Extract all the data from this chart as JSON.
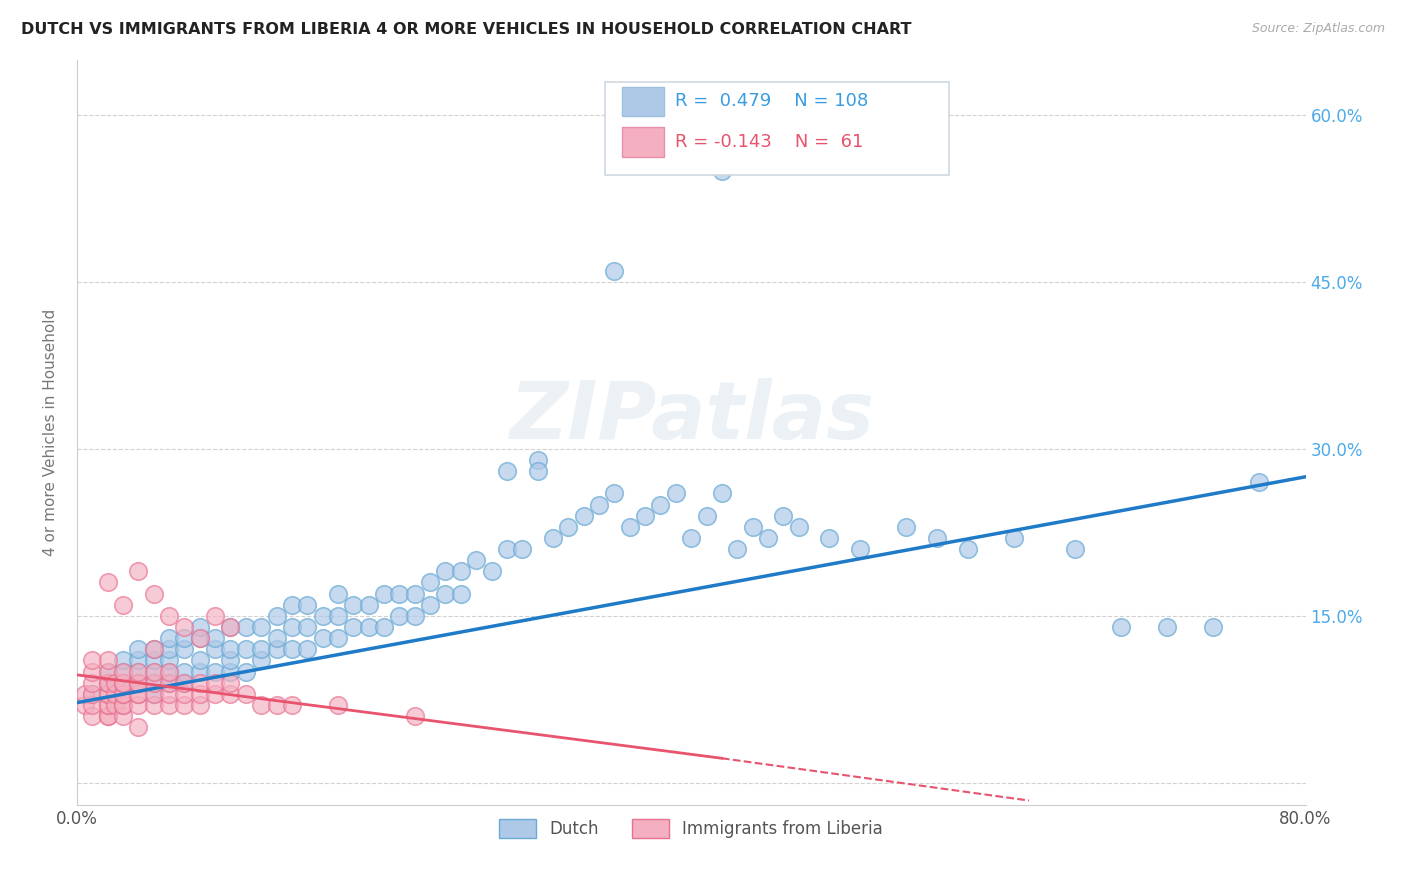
{
  "title": "DUTCH VS IMMIGRANTS FROM LIBERIA 4 OR MORE VEHICLES IN HOUSEHOLD CORRELATION CHART",
  "source": "Source: ZipAtlas.com",
  "ylabel": "4 or more Vehicles in Household",
  "xlim": [
    0.0,
    0.8
  ],
  "ylim": [
    -0.02,
    0.65
  ],
  "yticks_right": [
    0.0,
    0.15,
    0.3,
    0.45,
    0.6
  ],
  "yticklabels_right": [
    "",
    "15.0%",
    "30.0%",
    "45.0%",
    "60.0%"
  ],
  "dutch_R": 0.479,
  "dutch_N": 108,
  "liberia_R": -0.143,
  "liberia_N": 61,
  "dutch_color": "#aec9e8",
  "dutch_edge_color": "#6aaad4",
  "liberia_color": "#f4afc0",
  "liberia_edge_color": "#e87090",
  "dutch_line_color": "#1f7bc8",
  "liberia_line_color": "#e8536e",
  "liberia_line_solid_end": 0.42,
  "liberia_line_dash_end": 0.62,
  "watermark": "ZIPatlas",
  "legend_dutch_label": "Dutch",
  "legend_liberia_label": "Immigrants from Liberia",
  "dutch_scatter_x": [
    0.01,
    0.02,
    0.02,
    0.03,
    0.03,
    0.03,
    0.04,
    0.04,
    0.04,
    0.04,
    0.05,
    0.05,
    0.05,
    0.05,
    0.05,
    0.06,
    0.06,
    0.06,
    0.06,
    0.06,
    0.07,
    0.07,
    0.07,
    0.07,
    0.08,
    0.08,
    0.08,
    0.08,
    0.09,
    0.09,
    0.09,
    0.1,
    0.1,
    0.1,
    0.1,
    0.11,
    0.11,
    0.11,
    0.12,
    0.12,
    0.12,
    0.13,
    0.13,
    0.13,
    0.14,
    0.14,
    0.14,
    0.15,
    0.15,
    0.15,
    0.16,
    0.16,
    0.17,
    0.17,
    0.17,
    0.18,
    0.18,
    0.19,
    0.19,
    0.2,
    0.2,
    0.21,
    0.21,
    0.22,
    0.22,
    0.23,
    0.23,
    0.24,
    0.24,
    0.25,
    0.25,
    0.26,
    0.27,
    0.28,
    0.28,
    0.29,
    0.3,
    0.3,
    0.31,
    0.32,
    0.33,
    0.34,
    0.35,
    0.36,
    0.37,
    0.38,
    0.39,
    0.4,
    0.41,
    0.42,
    0.43,
    0.44,
    0.45,
    0.46,
    0.47,
    0.49,
    0.51,
    0.54,
    0.56,
    0.58,
    0.61,
    0.65,
    0.68,
    0.71,
    0.74,
    0.77,
    0.35,
    0.42
  ],
  "dutch_scatter_y": [
    0.08,
    0.09,
    0.1,
    0.09,
    0.1,
    0.11,
    0.09,
    0.1,
    0.11,
    0.12,
    0.08,
    0.09,
    0.1,
    0.11,
    0.12,
    0.09,
    0.1,
    0.11,
    0.12,
    0.13,
    0.09,
    0.1,
    0.12,
    0.13,
    0.1,
    0.11,
    0.13,
    0.14,
    0.1,
    0.12,
    0.13,
    0.1,
    0.11,
    0.12,
    0.14,
    0.1,
    0.12,
    0.14,
    0.11,
    0.12,
    0.14,
    0.12,
    0.13,
    0.15,
    0.12,
    0.14,
    0.16,
    0.12,
    0.14,
    0.16,
    0.13,
    0.15,
    0.13,
    0.15,
    0.17,
    0.14,
    0.16,
    0.14,
    0.16,
    0.14,
    0.17,
    0.15,
    0.17,
    0.15,
    0.17,
    0.16,
    0.18,
    0.17,
    0.19,
    0.17,
    0.19,
    0.2,
    0.19,
    0.21,
    0.28,
    0.21,
    0.29,
    0.28,
    0.22,
    0.23,
    0.24,
    0.25,
    0.26,
    0.23,
    0.24,
    0.25,
    0.26,
    0.22,
    0.24,
    0.26,
    0.21,
    0.23,
    0.22,
    0.24,
    0.23,
    0.22,
    0.21,
    0.23,
    0.22,
    0.21,
    0.22,
    0.21,
    0.14,
    0.14,
    0.14,
    0.27,
    0.46,
    0.55
  ],
  "liberia_scatter_x": [
    0.005,
    0.005,
    0.01,
    0.01,
    0.01,
    0.01,
    0.01,
    0.01,
    0.02,
    0.02,
    0.02,
    0.02,
    0.02,
    0.02,
    0.02,
    0.02,
    0.02,
    0.02,
    0.025,
    0.025,
    0.025,
    0.03,
    0.03,
    0.03,
    0.03,
    0.03,
    0.03,
    0.03,
    0.03,
    0.04,
    0.04,
    0.04,
    0.04,
    0.04,
    0.04,
    0.04,
    0.05,
    0.05,
    0.05,
    0.05,
    0.05,
    0.06,
    0.06,
    0.06,
    0.06,
    0.07,
    0.07,
    0.07,
    0.08,
    0.08,
    0.08,
    0.09,
    0.09,
    0.1,
    0.1,
    0.11,
    0.12,
    0.13,
    0.14,
    0.17,
    0.22
  ],
  "liberia_scatter_y": [
    0.07,
    0.08,
    0.06,
    0.07,
    0.08,
    0.09,
    0.1,
    0.11,
    0.06,
    0.06,
    0.07,
    0.07,
    0.08,
    0.08,
    0.09,
    0.09,
    0.1,
    0.11,
    0.07,
    0.08,
    0.09,
    0.06,
    0.07,
    0.07,
    0.08,
    0.08,
    0.09,
    0.09,
    0.1,
    0.05,
    0.07,
    0.08,
    0.08,
    0.09,
    0.09,
    0.1,
    0.07,
    0.08,
    0.09,
    0.1,
    0.12,
    0.07,
    0.08,
    0.09,
    0.1,
    0.07,
    0.08,
    0.09,
    0.07,
    0.08,
    0.09,
    0.08,
    0.09,
    0.08,
    0.09,
    0.08,
    0.07,
    0.07,
    0.07,
    0.07,
    0.06
  ],
  "liberia_extra_x": [
    0.02,
    0.03,
    0.04,
    0.05,
    0.06,
    0.07,
    0.08,
    0.09,
    0.1
  ],
  "liberia_extra_y": [
    0.18,
    0.16,
    0.19,
    0.17,
    0.15,
    0.14,
    0.13,
    0.15,
    0.14
  ],
  "dutch_line_x0": 0.0,
  "dutch_line_y0": 0.072,
  "dutch_line_x1": 0.8,
  "dutch_line_y1": 0.275,
  "liberia_line_x0": 0.0,
  "liberia_line_y0": 0.097,
  "liberia_line_solid_x1": 0.42,
  "liberia_line_solid_y1": 0.022,
  "liberia_line_dash_x1": 0.62,
  "liberia_line_dash_y1": -0.016
}
